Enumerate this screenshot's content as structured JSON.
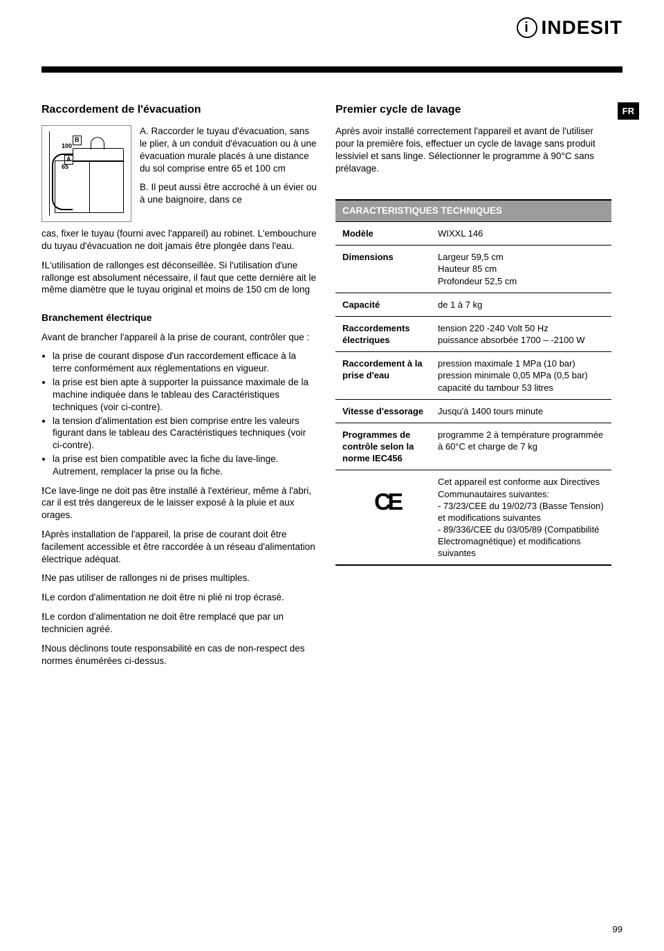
{
  "logo_text": "INDESIT",
  "lang_tag": "FR",
  "page_number": "99",
  "left": {
    "h_evac": "Raccordement de l'évacuation",
    "diagram": {
      "l100": "100",
      "l65": "65",
      "lA": "A",
      "lB": "B"
    },
    "evac_A": "A. Raccorder le tuyau d'évacuation, sans le plier, à un conduit d'évacuation ou à une évacuation murale placés à une distance du sol comprise entre 65 et 100 cm",
    "evac_B": "B. Il peut aussi être accroché à un évier ou à une baignoire, dans ce",
    "evac_cont": "cas, fixer le tuyau (fourni avec l'appareil) au robinet. L'embouchure du tuyau d'évacuation ne doit jamais être plongée dans l'eau.",
    "rallonge": "L'utilisation de rallonges est déconseillée. Si l'utilisation d'une rallonge est absolument nécessaire, il faut que cette dernière ait le même diamètre que le tuyau original et moins de 150 cm de long",
    "h_elec": "Branchement électrique",
    "elec_intro": "Avant de brancher l'appareil à la prise de courant, contrôler que :",
    "elec_bullets": [
      "la prise de courant dispose d'un raccordement efficace à la terre conformément aux réglementations en vigueur.",
      "la prise est bien apte à supporter la puissance maximale de la machine indiquée dans le tableau des Caractéristiques techniques (voir ci-contre).",
      "la tension d'alimentation est bien comprise entre les valeurs figurant dans le tableau des Caractéristiques techniques (voir ci-contre).",
      "la prise est bien compatible avec la fiche du lave-linge. Autrement, remplacer la prise ou la fiche."
    ],
    "warnings": [
      "Ce lave-linge ne doit pas être installé à l'extérieur, même à l'abri, car il est très dangereux de le laisser exposé à la pluie et aux orages.",
      "Après installation de l'appareil, la prise de courant doit être facilement accessible et être raccordée à un réseau d'alimentation électrique adéquat.",
      "Ne pas utiliser de rallonges ni de prises multiples.",
      "Le cordon d'alimentation ne doit être ni plié ni trop écrasé.",
      "Le cordon d'alimentation ne doit être remplacé que par un technicien agréé.",
      "Nous déclinons toute responsabilité en cas de non-respect des normes énumérées ci-dessus."
    ]
  },
  "right": {
    "h_cycle": "Premier cycle de lavage",
    "cycle_text": "Après avoir installé correctement l'appareil et avant de l'utiliser pour la première fois, effectuer un cycle de lavage sans produit lessiviel et sans linge. Sélectionner le programme à 90°C sans prélavage.",
    "spec_title": "CARACTERISTIQUES TECHNIQUES",
    "specs": [
      {
        "label": "Modèle",
        "value": "WIXXL 146"
      },
      {
        "label": "Dimensions",
        "value": "Largeur 59,5 cm\nHauteur 85 cm\nProfondeur 52,5 cm"
      },
      {
        "label": "Capacité",
        "value": "de 1 à 7 kg"
      },
      {
        "label": "Raccordements électriques",
        "value": "tension 220 -240 Volt 50 Hz\npuissance absorbée 1700 – -2100 W"
      },
      {
        "label": "Raccordement à la prise d'eau",
        "value": "pression maximale 1 MPa (10 bar)\npression minimale 0,05 MPa (0,5 bar)\ncapacité du tambour 53 litres"
      },
      {
        "label": "Vitesse d'essorage",
        "value": "Jusqu'à 1400 tours minute"
      },
      {
        "label": "Programmes de contrôle selon la norme IEC456",
        "value": "programme 2 à température programmée à 60°C et charge de 7 kg"
      }
    ],
    "ce_text": "Cet appareil est conforme aux Directives Communautaires suivantes:\n- 73/23/CEE du 19/02/73 (Basse Tension) et modifications suivantes\n- 89/336/CEE du 03/05/89 (Compatibilité Electromagnétique) et modifications suivantes"
  }
}
